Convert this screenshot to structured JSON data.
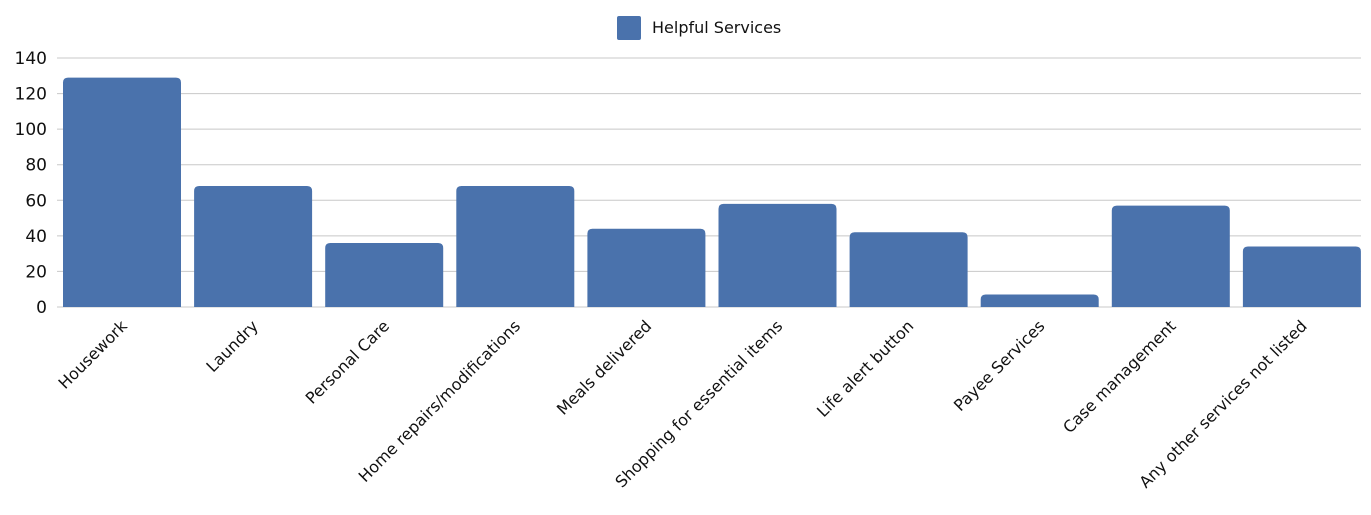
{
  "chart_data": {
    "type": "bar",
    "categories": [
      "Housework",
      "Laundry",
      "Personal Care",
      "Home repairs/modifications",
      "Meals delivered",
      "Shopping for essential items",
      "Life alert button",
      "Payee Services",
      "Case management",
      "Any other services not listed"
    ],
    "series": [
      {
        "name": "Helpful Services",
        "values": [
          129,
          68,
          36,
          68,
          44,
          58,
          42,
          7,
          57,
          34
        ],
        "color": "#4a72ac"
      }
    ],
    "ylim": [
      0,
      140
    ],
    "yticks": [
      0,
      20,
      40,
      60,
      80,
      100,
      120,
      140
    ],
    "grid": true,
    "legend_position": "top-center",
    "xlabel": "",
    "ylabel": "",
    "title": ""
  }
}
